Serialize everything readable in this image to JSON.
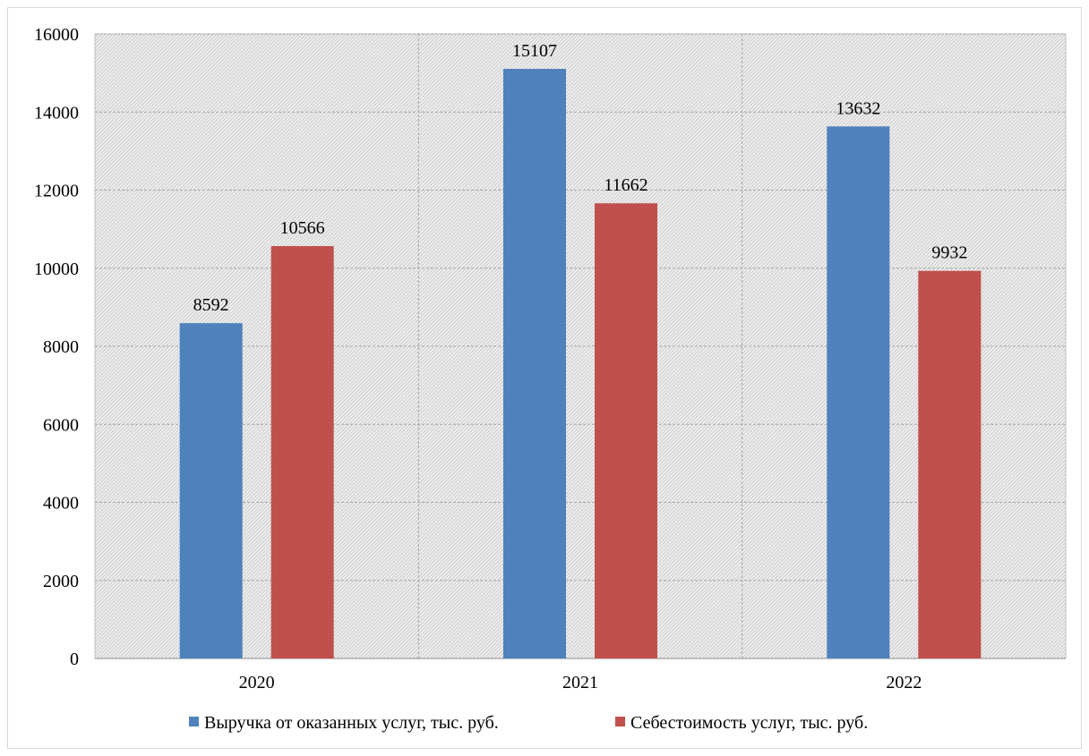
{
  "chart_data": {
    "type": "bar",
    "categories": [
      "2020",
      "2021",
      "2022"
    ],
    "series": [
      {
        "name": "Выручка от оказанных услуг, тыс. руб.",
        "values": [
          8592,
          15107,
          13632
        ],
        "color": "#4f81bd"
      },
      {
        "name": "Себестоимость услуг, тыс. руб.",
        "values": [
          10566,
          11662,
          9932
        ],
        "color": "#c0504d"
      }
    ],
    "ylim": [
      0,
      16000
    ],
    "yticks": [
      0,
      2000,
      4000,
      6000,
      8000,
      10000,
      12000,
      14000,
      16000
    ],
    "data_labels": true,
    "grid": "horizontal and vertical dashed",
    "plot_background": "light gray diagonal hatch",
    "legend_position": "bottom",
    "title": "",
    "xlabel": "",
    "ylabel": ""
  }
}
